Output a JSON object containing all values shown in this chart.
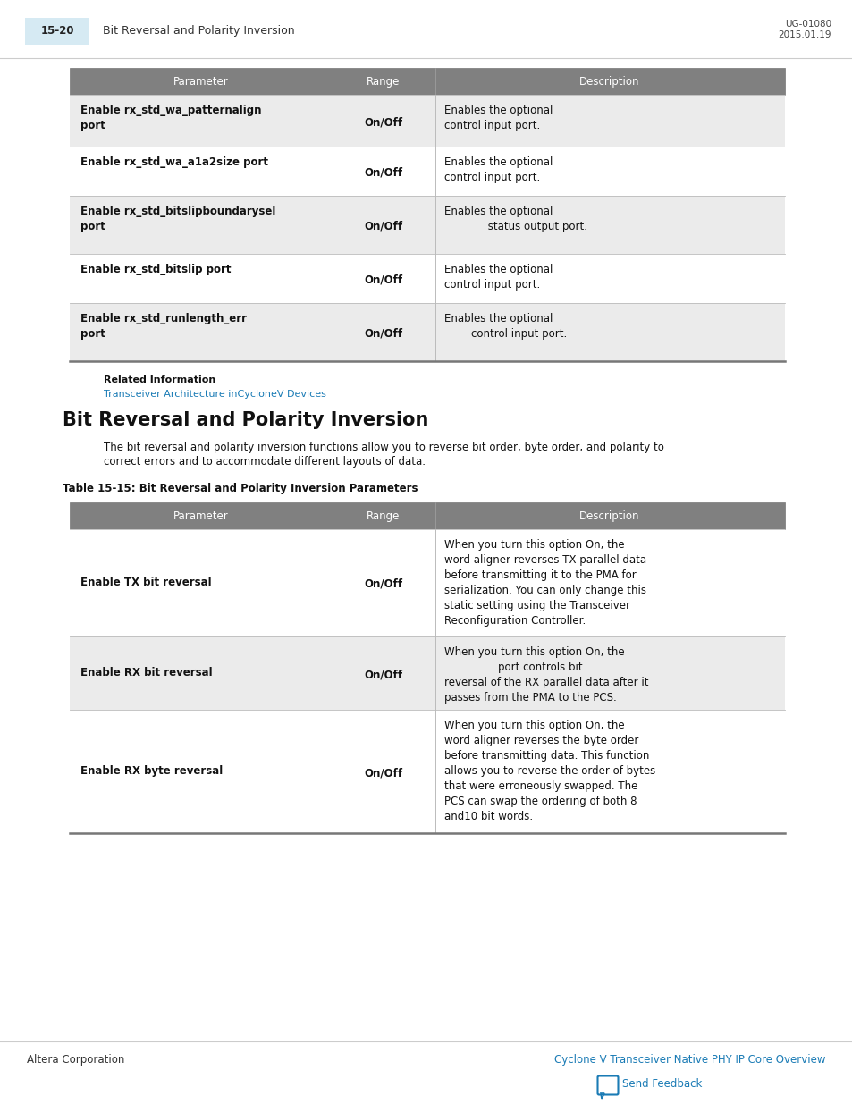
{
  "page_num": "15-20",
  "page_header_title": "Bit Reversal and Polarity Inversion",
  "doc_id": "UG-01080",
  "doc_date": "2015.01.19",
  "header_tab_bg": "#d6eaf3",
  "table_header_bg": "#808080",
  "table_header_color": "#ffffff",
  "row_bg_light": "#f2f2f2",
  "row_bg_mid": "#e8e8e8",
  "row_bg_dark": "#dcdcdc",
  "table1_columns": [
    "Parameter",
    "Range",
    "Description"
  ],
  "table1_rows": [
    {
      "param": "Enable rx_std_wa_patternalign\nport",
      "range": "On/Off",
      "desc": "Enables the optional\ncontrol input port.",
      "shade": "light"
    },
    {
      "param": "Enable rx_std_wa_a1a2size port",
      "range": "On/Off",
      "desc": "Enables the optional\ncontrol input port.",
      "shade": "white"
    },
    {
      "param": "Enable rx_std_bitslipboundarysel\nport",
      "range": "On/Off",
      "desc": "Enables the optional\n             status output port.",
      "shade": "light"
    },
    {
      "param": "Enable rx_std_bitslip port",
      "range": "On/Off",
      "desc": "Enables the optional\ncontrol input port.",
      "shade": "white"
    },
    {
      "param": "Enable rx_std_runlength_err\nport",
      "range": "On/Off",
      "desc": "Enables the optional\n        control input port.",
      "shade": "light"
    }
  ],
  "related_info_label": "Related Information",
  "related_info_link": "Transceiver Architecture inCycloneV Devices",
  "related_info_link_color": "#1a7bb5",
  "section_title": "Bit Reversal and Polarity Inversion",
  "section_body1": "The bit reversal and polarity inversion functions allow you to reverse bit order, byte order, and polarity to",
  "section_body2": "correct errors and to accommodate different layouts of data.",
  "table2_caption": "Table 15-15: Bit Reversal and Polarity Inversion Parameters",
  "table2_columns": [
    "Parameter",
    "Range",
    "Description"
  ],
  "table2_rows": [
    {
      "param": "Enable TX bit reversal",
      "range": "On/Off",
      "desc": "When you turn this option On, the\nword aligner reverses TX parallel data\nbefore transmitting it to the PMA for\nserialization. You can only change this\nstatic setting using the Transceiver\nReconfiguration Controller.",
      "shade": "white"
    },
    {
      "param": "Enable RX bit reversal",
      "range": "On/Off",
      "desc": "When you turn this option On, the\n                port controls bit\nreversal of the RX parallel data after it\npasses from the PMA to the PCS.",
      "shade": "light"
    },
    {
      "param": "Enable RX byte reversal",
      "range": "On/Off",
      "desc": "When you turn this option On, the\nword aligner reverses the byte order\nbefore transmitting data. This function\nallows you to reverse the order of bytes\nthat were erroneously swapped. The\nPCS can swap the ordering of both 8\nand10 bit words.",
      "shade": "white"
    }
  ],
  "footer_left": "Altera Corporation",
  "footer_right": "Cyclone V Transceiver Native PHY IP Core Overview",
  "footer_link_color": "#1a7bb5",
  "send_feedback_text": "Send Feedback",
  "send_feedback_color": "#1a7bb5"
}
